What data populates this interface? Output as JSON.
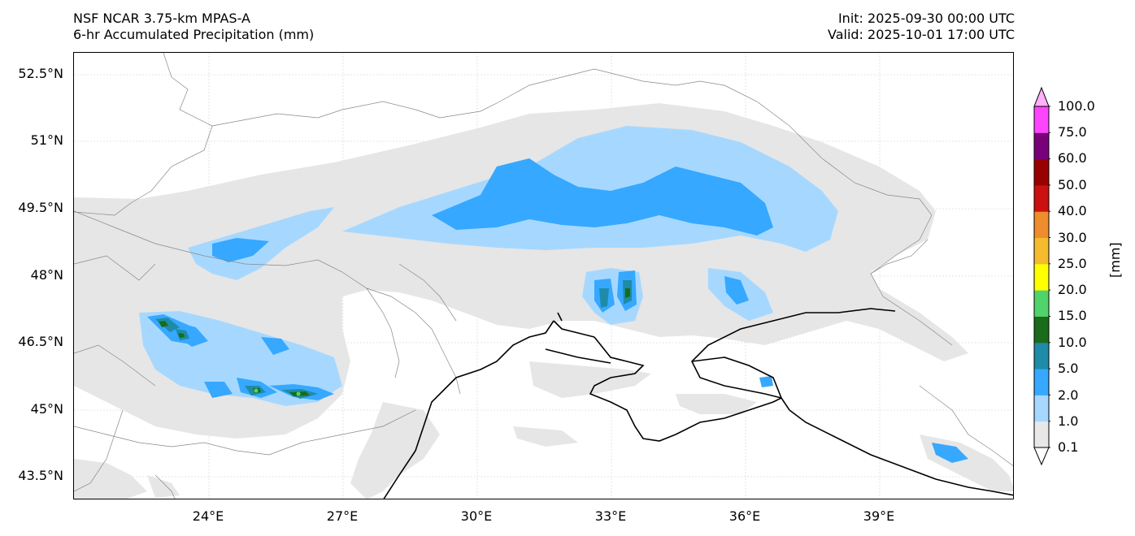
{
  "header": {
    "model": "NSF NCAR 3.75-km MPAS-A",
    "field": "6-hr Accumulated Precipitation (mm)",
    "init": "Init: 2025-09-30 00:00 UTC",
    "valid": "Valid: 2025-10-01 17:00 UTC"
  },
  "map": {
    "lat_labels": [
      "52.5°N",
      "51°N",
      "49.5°N",
      "48°N",
      "46.5°N",
      "45°N",
      "43.5°N"
    ],
    "lon_labels": [
      "24°E",
      "27°E",
      "30°E",
      "33°E",
      "36°E",
      "39°E"
    ],
    "extent": {
      "lon_min": 20.9,
      "lon_max": 42.0,
      "lat_min": 42.9,
      "lat_max": 53.0
    },
    "colors": {
      "coastline": "#000000",
      "borders": "#888888",
      "gridlines": "#dddddd"
    }
  },
  "colorbar": {
    "unit_label": "[mm]",
    "levels": [
      "0.1",
      "1.0",
      "2.0",
      "5.0",
      "10.0",
      "15.0",
      "20.0",
      "25.0",
      "30.0",
      "40.0",
      "50.0",
      "60.0",
      "75.0",
      "100.0"
    ],
    "colors": [
      "#e8e8e8",
      "#a6d8ff",
      "#36a8ff",
      "#1e8ca8",
      "#1a6b1a",
      "#4fd36a",
      "#ffff00",
      "#f4bc2c",
      "#ef8c2c",
      "#cc1010",
      "#990000",
      "#7a007a",
      "#ff44ff"
    ],
    "under_color": "#ffffff",
    "over_color": "#ffb0ff"
  }
}
